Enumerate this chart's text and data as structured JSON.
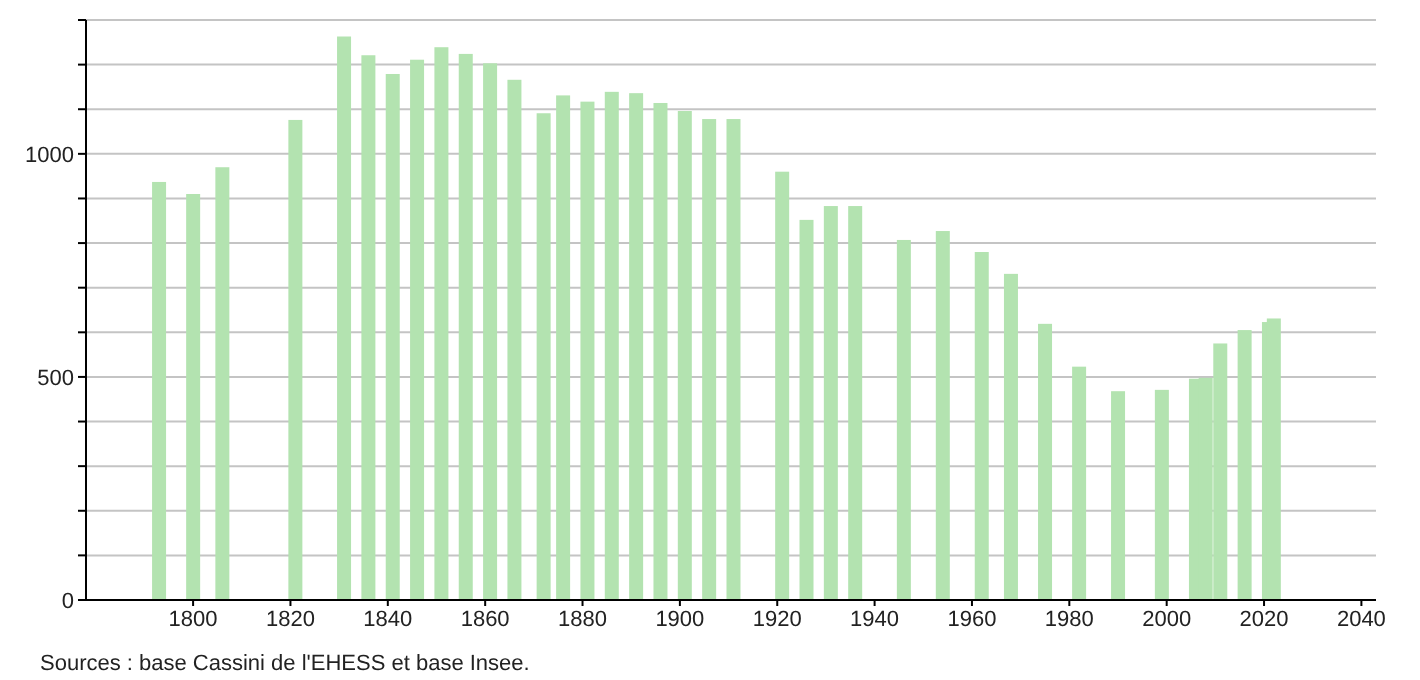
{
  "chart_data": {
    "type": "bar",
    "annotations": [
      "Sources : base Cassini de l'EHESS et base Insee."
    ],
    "x": [
      1793,
      1800,
      1806,
      1821,
      1831,
      1836,
      1841,
      1846,
      1851,
      1856,
      1861,
      1866,
      1872,
      1876,
      1881,
      1886,
      1891,
      1896,
      1901,
      1906,
      1911,
      1921,
      1926,
      1931,
      1936,
      1946,
      1954,
      1962,
      1968,
      1975,
      1982,
      1990,
      1999,
      2006,
      2008,
      2011,
      2016,
      2021,
      2022
    ],
    "values": [
      937,
      910,
      970,
      1076,
      1263,
      1221,
      1179,
      1211,
      1239,
      1224,
      1203,
      1166,
      1091,
      1131,
      1117,
      1139,
      1136,
      1114,
      1096,
      1078,
      1078,
      960,
      852,
      883,
      883,
      807,
      827,
      780,
      731,
      619,
      523,
      468,
      471,
      496,
      498,
      575,
      605,
      623,
      631
    ],
    "color": "#b3e3b0",
    "xlim": [
      1778,
      2043
    ],
    "xticks": [
      1800,
      1820,
      1840,
      1860,
      1880,
      1900,
      1920,
      1940,
      1960,
      1980,
      2000,
      2020,
      2040
    ],
    "ylim": [
      0,
      1300
    ],
    "yticks": [
      0,
      {
        "value": 100,
        "label": null
      },
      {
        "value": 200,
        "label": null
      },
      {
        "value": 300,
        "label": null
      },
      {
        "value": 400,
        "label": null
      },
      500,
      {
        "value": 600,
        "label": null
      },
      {
        "value": 700,
        "label": null
      },
      {
        "value": 800,
        "label": null
      },
      {
        "value": 900,
        "label": null
      },
      1000,
      {
        "value": 1100,
        "label": null
      },
      {
        "value": 1200,
        "label": null
      },
      {
        "value": 1300,
        "label": null
      }
    ],
    "grid": "y",
    "legend": false
  }
}
